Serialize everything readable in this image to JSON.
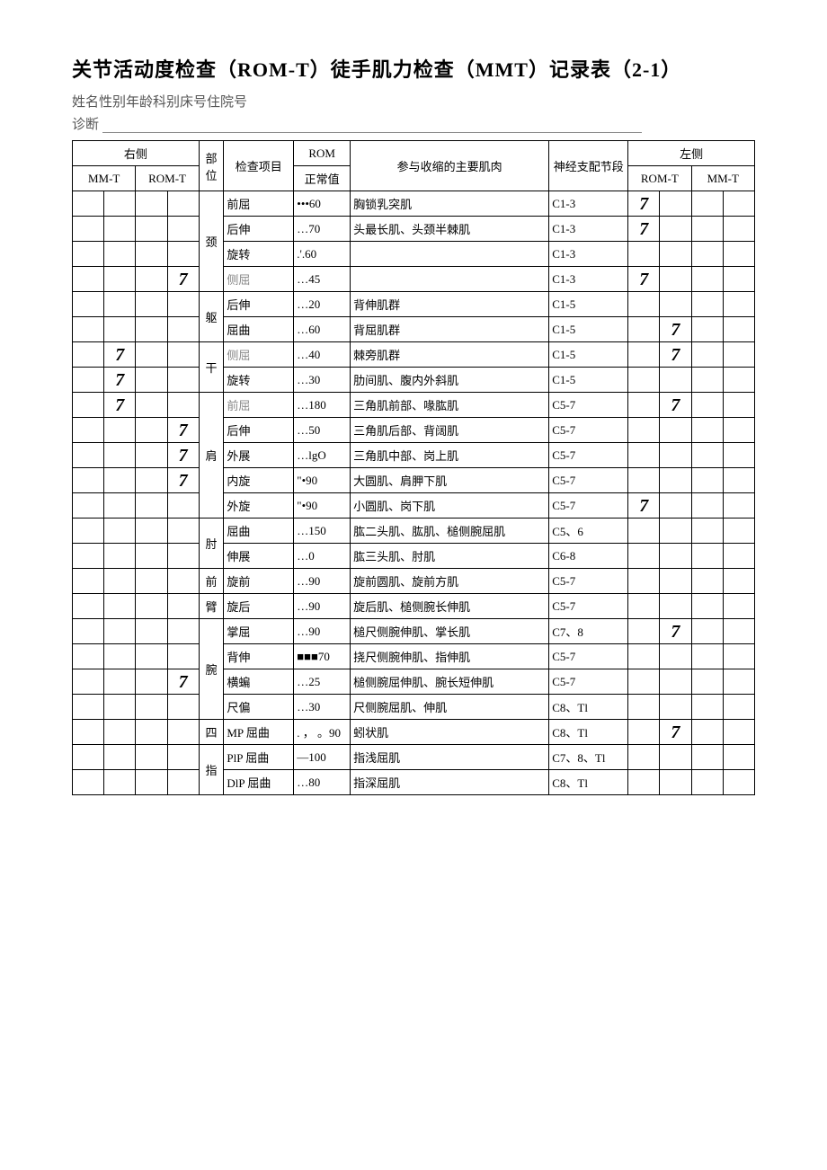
{
  "title": "关节活动度检查（ROM-T）徒手肌力检查（MMT）记录表（2-1）",
  "meta": "姓名性别年龄科别床号住院号",
  "diag_label": "诊断",
  "headers": {
    "right": "右侧",
    "left": "左侧",
    "part": "部位",
    "exam": "检查项目",
    "rom": "ROM",
    "rom_normal": "正常值",
    "muscle": "参与收缩的主要肌肉",
    "nerve": "神经支配节段",
    "mmt": "MM-T",
    "romt": "ROM-T"
  },
  "parts": [
    "颈",
    "躯",
    "干",
    "肩",
    "肘",
    "前",
    "臂",
    "腕",
    "四",
    "指"
  ],
  "seven": "7",
  "rows": [
    {
      "r_mmt": [
        "",
        ""
      ],
      "r_romt": [
        "",
        ""
      ],
      "part": "",
      "item": "前屈",
      "rom": "•••60",
      "muscle": "胸锁乳突肌",
      "nerve": "C1-3",
      "l_romt": [
        "7",
        ""
      ],
      "l_mmt": [
        "",
        ""
      ]
    },
    {
      "r_mmt": [
        "",
        ""
      ],
      "r_romt": [
        "",
        ""
      ],
      "part": "颈",
      "item": "后伸",
      "rom": "…70",
      "muscle": "头最长肌、头颈半棘肌",
      "nerve": "C1-3",
      "l_romt": [
        "7",
        ""
      ],
      "l_mmt": [
        "",
        ""
      ]
    },
    {
      "r_mmt": [
        "",
        ""
      ],
      "r_romt": [
        "",
        ""
      ],
      "part": "",
      "item": "旋转",
      "rom": ".'.60",
      "muscle": "",
      "nerve": "C1-3",
      "l_romt": [
        "",
        ""
      ],
      "l_mmt": [
        "",
        ""
      ]
    },
    {
      "r_mmt": [
        "",
        ""
      ],
      "r_romt": [
        "",
        "7"
      ],
      "part": "",
      "item": "侧屈",
      "rom": "…45",
      "muscle": "",
      "nerve": "C1-3",
      "l_romt": [
        "7",
        ""
      ],
      "l_mmt": [
        "",
        ""
      ],
      "gray": true
    },
    {
      "r_mmt": [
        "",
        ""
      ],
      "r_romt": [
        "",
        ""
      ],
      "part": "",
      "item": "后伸",
      "rom": "…20",
      "muscle": "背伸肌群",
      "nerve": "C1-5",
      "l_romt": [
        "",
        ""
      ],
      "l_mmt": [
        "",
        ""
      ]
    },
    {
      "r_mmt": [
        "",
        ""
      ],
      "r_romt": [
        "",
        ""
      ],
      "part": "躯",
      "item": "屈曲",
      "rom": "…60",
      "muscle": "背屈肌群",
      "nerve": "C1-5",
      "l_romt": [
        "",
        "7"
      ],
      "l_mmt": [
        "",
        ""
      ]
    },
    {
      "r_mmt": [
        "",
        "7"
      ],
      "r_romt": [
        "",
        ""
      ],
      "part": "干",
      "item": "侧屈",
      "rom": "…40",
      "muscle": "棘旁肌群",
      "nerve": "C1-5",
      "l_romt": [
        "",
        "7"
      ],
      "l_mmt": [
        "",
        ""
      ],
      "gray": true
    },
    {
      "r_mmt": [
        "",
        "7"
      ],
      "r_romt": [
        "",
        ""
      ],
      "part": "",
      "item": "旋转",
      "rom": "…30",
      "muscle": "肋间肌、腹内外斜肌",
      "nerve": "C1-5",
      "l_romt": [
        "",
        ""
      ],
      "l_mmt": [
        "",
        ""
      ]
    },
    {
      "r_mmt": [
        "",
        "7"
      ],
      "r_romt": [
        "",
        ""
      ],
      "part": "",
      "item": "前屈",
      "rom": "…180",
      "muscle": "三角肌前部、喙肱肌",
      "nerve": "C5-7",
      "l_romt": [
        "",
        "7"
      ],
      "l_mmt": [
        "",
        ""
      ],
      "gray": true
    },
    {
      "r_mmt": [
        "",
        ""
      ],
      "r_romt": [
        "",
        "7"
      ],
      "part": "",
      "item": "后伸",
      "rom": "…50",
      "muscle": "三角肌后部、背阔肌",
      "nerve": "C5-7",
      "l_romt": [
        "",
        ""
      ],
      "l_mmt": [
        "",
        ""
      ]
    },
    {
      "r_mmt": [
        "",
        ""
      ],
      "r_romt": [
        "",
        "7"
      ],
      "part": "肩",
      "item": "外展",
      "rom": "…lgO",
      "muscle": "三角肌中部、岗上肌",
      "nerve": "C5-7",
      "l_romt": [
        "",
        ""
      ],
      "l_mmt": [
        "",
        ""
      ]
    },
    {
      "r_mmt": [
        "",
        ""
      ],
      "r_romt": [
        "",
        "7"
      ],
      "part": "",
      "item": "内旋",
      "rom": "\"•90",
      "muscle": "大圆肌、肩胛下肌",
      "nerve": "C5-7",
      "l_romt": [
        "",
        ""
      ],
      "l_mmt": [
        "",
        ""
      ]
    },
    {
      "r_mmt": [
        "",
        ""
      ],
      "r_romt": [
        "",
        ""
      ],
      "part": "",
      "item": "外旋",
      "rom": "\"•90",
      "muscle": "小圆肌、岗下肌",
      "nerve": "C5-7",
      "l_romt": [
        "7",
        ""
      ],
      "l_mmt": [
        "",
        ""
      ]
    },
    {
      "r_mmt": [
        "",
        ""
      ],
      "r_romt": [
        "",
        ""
      ],
      "part": "肘",
      "item": "屈曲",
      "rom": "…150",
      "muscle": "肱二头肌、肱肌、槌侧腕屈肌",
      "nerve": "C5、6",
      "l_romt": [
        "",
        ""
      ],
      "l_mmt": [
        "",
        ""
      ]
    },
    {
      "r_mmt": [
        "",
        ""
      ],
      "r_romt": [
        "",
        ""
      ],
      "part": "",
      "item": "伸展",
      "rom": "…0",
      "muscle": "肱三头肌、肘肌",
      "nerve": "C6-8",
      "l_romt": [
        "",
        ""
      ],
      "l_mmt": [
        "",
        ""
      ]
    },
    {
      "r_mmt": [
        "",
        ""
      ],
      "r_romt": [
        "",
        ""
      ],
      "part": "前",
      "item": "旋前",
      "rom": "…90",
      "muscle": "旋前圆肌、旋前方肌",
      "nerve": "C5-7",
      "l_romt": [
        "",
        ""
      ],
      "l_mmt": [
        "",
        ""
      ]
    },
    {
      "r_mmt": [
        "",
        ""
      ],
      "r_romt": [
        "",
        ""
      ],
      "part": "臂",
      "item": "旋后",
      "rom": "…90",
      "muscle": "旋后肌、槌侧腕长伸肌",
      "nerve": "C5-7",
      "l_romt": [
        "",
        ""
      ],
      "l_mmt": [
        "",
        ""
      ]
    },
    {
      "r_mmt": [
        "",
        ""
      ],
      "r_romt": [
        "",
        ""
      ],
      "part": "",
      "item": "掌屈",
      "rom": "…90",
      "muscle": "槌尺侧腕伸肌、掌长肌",
      "nerve": "C7、8",
      "l_romt": [
        "",
        "7"
      ],
      "l_mmt": [
        "",
        ""
      ]
    },
    {
      "r_mmt": [
        "",
        ""
      ],
      "r_romt": [
        "",
        ""
      ],
      "part": "",
      "item": "背伸",
      "rom": "■■■70",
      "muscle": "挠尺侧腕伸肌、指伸肌",
      "nerve": "C5-7",
      "l_romt": [
        "",
        ""
      ],
      "l_mmt": [
        "",
        ""
      ]
    },
    {
      "r_mmt": [
        "",
        ""
      ],
      "r_romt": [
        "",
        "7"
      ],
      "part": "腕",
      "item": "横蝙",
      "rom": "…25",
      "muscle": "槌侧腕屈伸肌、腕长短伸肌",
      "nerve": "C5-7",
      "l_romt": [
        "",
        ""
      ],
      "l_mmt": [
        "",
        ""
      ]
    },
    {
      "r_mmt": [
        "",
        ""
      ],
      "r_romt": [
        "",
        ""
      ],
      "part": "",
      "item": "尺偏",
      "rom": "…30",
      "muscle": "尺侧腕屈肌、伸肌",
      "nerve": "C8、Tl",
      "l_romt": [
        "",
        ""
      ],
      "l_mmt": [
        "",
        ""
      ]
    },
    {
      "r_mmt": [
        "",
        ""
      ],
      "r_romt": [
        "",
        ""
      ],
      "part": "四",
      "item": "MP 屈曲",
      "rom": ". ， 。90",
      "muscle": "蚓状肌",
      "nerve": "C8、Tl",
      "l_romt": [
        "",
        "7"
      ],
      "l_mmt": [
        "",
        ""
      ]
    },
    {
      "r_mmt": [
        "",
        ""
      ],
      "r_romt": [
        "",
        ""
      ],
      "part": "",
      "item": "PlP 屈曲",
      "rom": "—100",
      "muscle": "指浅屈肌",
      "nerve": "C7、8、Tl",
      "l_romt": [
        "",
        ""
      ],
      "l_mmt": [
        "",
        ""
      ]
    },
    {
      "r_mmt": [
        "",
        ""
      ],
      "r_romt": [
        "",
        ""
      ],
      "part": "指",
      "item": "DlP 屈曲",
      "rom": "…80",
      "muscle": "指深屈肌",
      "nerve": "C8、Tl",
      "l_romt": [
        "",
        ""
      ],
      "l_mmt": [
        "",
        ""
      ]
    }
  ],
  "part_spans": {
    "0": "",
    "1": {
      "text": "颈",
      "span": 2
    },
    "4": "",
    "5": {
      "text": "躯",
      "span": 1
    },
    "6": {
      "text": "干",
      "span": 1
    },
    "8": "",
    "10": {
      "text": "肩",
      "span": 1
    },
    "13": {
      "text": "肘",
      "span": 2
    },
    "15": {
      "text": "前",
      "span": 1
    },
    "16": {
      "text": "臂",
      "span": 1
    },
    "19": {
      "text": "腕",
      "span": 1
    },
    "21": {
      "text": "四",
      "span": 1
    },
    "23": {
      "text": "指",
      "span": 1
    }
  }
}
